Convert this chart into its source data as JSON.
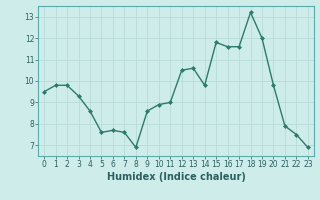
{
  "x": [
    0,
    1,
    2,
    3,
    4,
    5,
    6,
    7,
    8,
    9,
    10,
    11,
    12,
    13,
    14,
    15,
    16,
    17,
    18,
    19,
    20,
    21,
    22,
    23
  ],
  "y": [
    9.5,
    9.8,
    9.8,
    9.3,
    8.6,
    7.6,
    7.7,
    7.6,
    6.9,
    8.6,
    8.9,
    9.0,
    10.5,
    10.6,
    9.8,
    11.8,
    11.6,
    11.6,
    13.2,
    12.0,
    9.8,
    7.9,
    7.5,
    6.9
  ],
  "line_color": "#2d7a6e",
  "marker": "D",
  "marker_size": 2.0,
  "bg_color": "#cdecea",
  "grid_color": "#b8dbd9",
  "xlabel": "Humidex (Indice chaleur)",
  "xlim": [
    -0.5,
    23.5
  ],
  "ylim": [
    6.5,
    13.5
  ],
  "yticks": [
    7,
    8,
    9,
    10,
    11,
    12,
    13
  ],
  "xticks": [
    0,
    1,
    2,
    3,
    4,
    5,
    6,
    7,
    8,
    9,
    10,
    11,
    12,
    13,
    14,
    15,
    16,
    17,
    18,
    19,
    20,
    21,
    22,
    23
  ],
  "tick_fontsize": 5.5,
  "xlabel_fontsize": 7.0,
  "line_width": 1.0
}
